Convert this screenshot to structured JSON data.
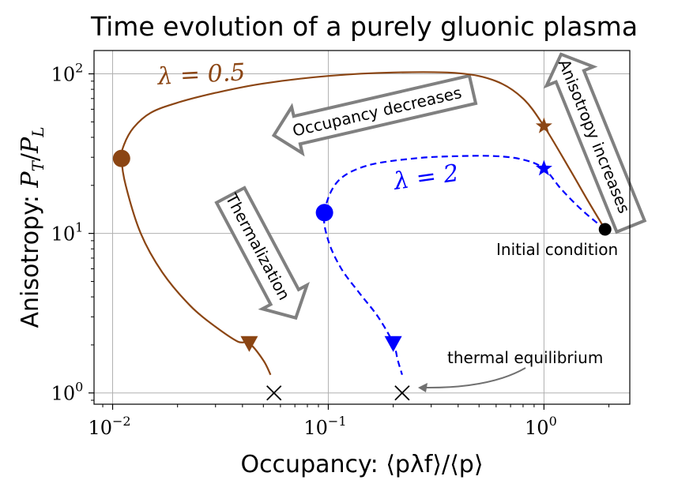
{
  "chart_data": {
    "type": "line",
    "title": "Time evolution of a purely gluonic plasma",
    "xlabel": "Occupancy: ⟨pλf⟩/⟨p⟩",
    "ylabel": "Anisotropy: P_T/P_L",
    "ylabel_prefix": "Anisotropy: ",
    "ylabel_math": "P",
    "ylabel_sub1": "T",
    "ylabel_sub2": "L",
    "xscale": "log",
    "yscale": "log",
    "xlim": [
      0.0082,
      2.5
    ],
    "ylim": [
      0.85,
      140
    ],
    "grid": true,
    "x_ticks": [
      {
        "base": "10",
        "exp": "−2",
        "value": 0.01
      },
      {
        "base": "10",
        "exp": "−1",
        "value": 0.1
      },
      {
        "base": "10",
        "exp": "0",
        "value": 1
      }
    ],
    "y_ticks": [
      {
        "base": "10",
        "exp": "0",
        "value": 1
      },
      {
        "base": "10",
        "exp": "1",
        "value": 10
      },
      {
        "base": "10",
        "exp": "2",
        "value": 100
      }
    ],
    "series": [
      {
        "name": "λ = 0.5",
        "color": "#8B4513",
        "style": "solid",
        "points": [
          [
            1.92,
            10.6
          ],
          [
            1.6,
            16
          ],
          [
            1.3,
            26
          ],
          [
            1.0,
            47
          ],
          [
            0.8,
            70
          ],
          [
            0.6,
            90
          ],
          [
            0.4,
            101
          ],
          [
            0.2,
            102
          ],
          [
            0.1,
            97
          ],
          [
            0.05,
            87
          ],
          [
            0.03,
            76
          ],
          [
            0.02,
            66
          ],
          [
            0.015,
            57
          ],
          [
            0.0125,
            46
          ],
          [
            0.0113,
            36
          ],
          [
            0.011,
            29.5
          ],
          [
            0.0115,
            20
          ],
          [
            0.0135,
            10
          ],
          [
            0.017,
            5.7
          ],
          [
            0.023,
            3.5
          ],
          [
            0.03,
            2.6
          ],
          [
            0.038,
            2.1
          ],
          [
            0.043,
            2.05
          ],
          [
            0.05,
            1.6
          ],
          [
            0.054,
            1.3
          ]
        ]
      },
      {
        "name": "λ = 2",
        "color": "#0000FF",
        "style": "dashed",
        "points": [
          [
            1.92,
            10.6
          ],
          [
            1.5,
            14
          ],
          [
            1.2,
            19
          ],
          [
            1.0,
            25.5
          ],
          [
            0.8,
            29
          ],
          [
            0.6,
            30.5
          ],
          [
            0.4,
            30.5
          ],
          [
            0.25,
            29.5
          ],
          [
            0.15,
            26.5
          ],
          [
            0.11,
            21
          ],
          [
            0.096,
            13.5
          ],
          [
            0.1,
            9
          ],
          [
            0.115,
            6
          ],
          [
            0.14,
            4.2
          ],
          [
            0.17,
            3
          ],
          [
            0.2,
            2.05
          ],
          [
            0.21,
            1.6
          ],
          [
            0.22,
            1.3
          ]
        ]
      }
    ],
    "markers": [
      {
        "name": "initial-condition",
        "shape": "circle",
        "color": "#000000",
        "x": 1.92,
        "y": 10.6
      },
      {
        "name": "brown-circle",
        "shape": "circle",
        "color": "#8B4513",
        "x": 0.011,
        "y": 29.5
      },
      {
        "name": "brown-star",
        "shape": "star",
        "color": "#8B4513",
        "x": 1.0,
        "y": 47
      },
      {
        "name": "brown-triangle",
        "shape": "triangle-down",
        "color": "#8B4513",
        "x": 0.043,
        "y": 2.05
      },
      {
        "name": "blue-circle",
        "shape": "circle",
        "color": "#0000FF",
        "x": 0.096,
        "y": 13.5
      },
      {
        "name": "blue-star",
        "shape": "star",
        "color": "#0000FF",
        "x": 1.0,
        "y": 25.5
      },
      {
        "name": "blue-triangle",
        "shape": "triangle-down",
        "color": "#0000FF",
        "x": 0.2,
        "y": 2.05
      },
      {
        "name": "brown-equilibrium",
        "shape": "x",
        "color": "#000000",
        "x": 0.056,
        "y": 1.0
      },
      {
        "name": "blue-equilibrium",
        "shape": "x",
        "color": "#000000",
        "x": 0.22,
        "y": 1.0
      }
    ],
    "annotations": {
      "lambda_05_label": "λ = 0.5",
      "lambda_2_label": "λ = 2",
      "initial_condition": "Initial condition",
      "thermal_equilibrium": "thermal equilibrium",
      "occupancy_decreases": "Occupancy decreases",
      "anisotropy_increases": "Anisotropy increases",
      "thermalization": "Thermalization"
    }
  }
}
